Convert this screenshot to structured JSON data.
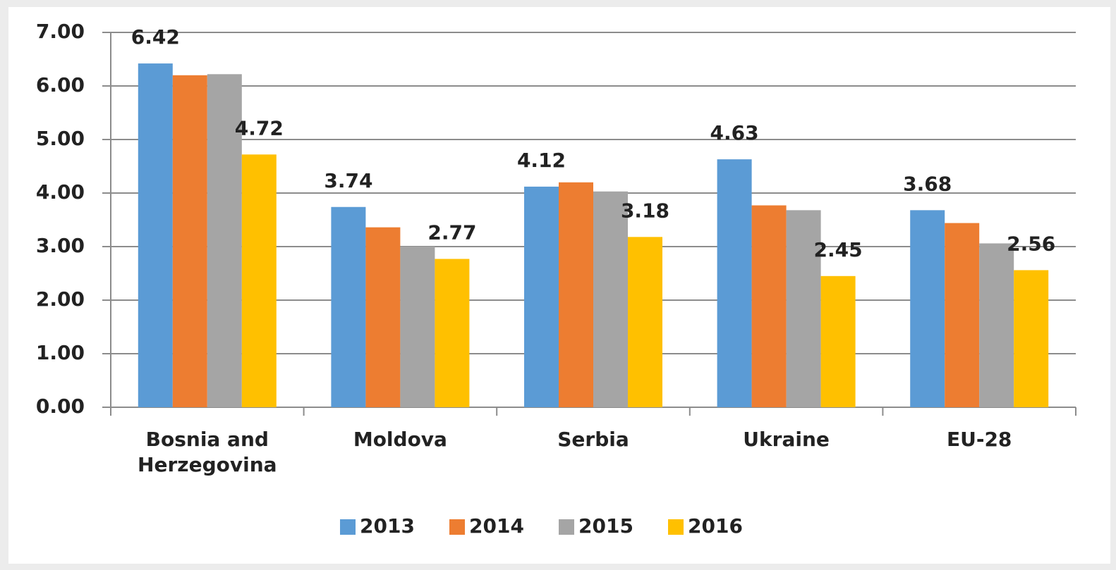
{
  "chart_data": {
    "type": "bar",
    "categories": [
      "Bosnia and Herzegovina",
      "Moldova",
      "Serbia",
      "Ukraine",
      "EU-28"
    ],
    "series": [
      {
        "name": "2013",
        "color": "#5b9bd5",
        "values": [
          6.42,
          3.74,
          4.12,
          4.63,
          3.68
        ],
        "data_labels": true
      },
      {
        "name": "2014",
        "color": "#ed7d31",
        "values": [
          6.2,
          3.36,
          4.2,
          3.77,
          3.44
        ],
        "data_labels": false
      },
      {
        "name": "2015",
        "color": "#a5a5a5",
        "values": [
          6.22,
          3.0,
          4.03,
          3.68,
          3.06
        ],
        "data_labels": false
      },
      {
        "name": "2016",
        "color": "#ffc000",
        "values": [
          4.72,
          2.77,
          3.18,
          2.45,
          2.56
        ],
        "data_labels": true
      }
    ],
    "ylim": [
      0,
      7
    ],
    "yticks": [
      {
        "value": 0,
        "label": "0.00"
      },
      {
        "value": 1,
        "label": "1.00"
      },
      {
        "value": 2,
        "label": "2.00"
      },
      {
        "value": 3,
        "label": "3.00"
      },
      {
        "value": 4,
        "label": "4.00"
      },
      {
        "value": 5,
        "label": "5.00"
      },
      {
        "value": 6,
        "label": "6.00"
      },
      {
        "value": 7,
        "label": "7.00"
      }
    ],
    "grid": true,
    "legend": "bottom"
  }
}
